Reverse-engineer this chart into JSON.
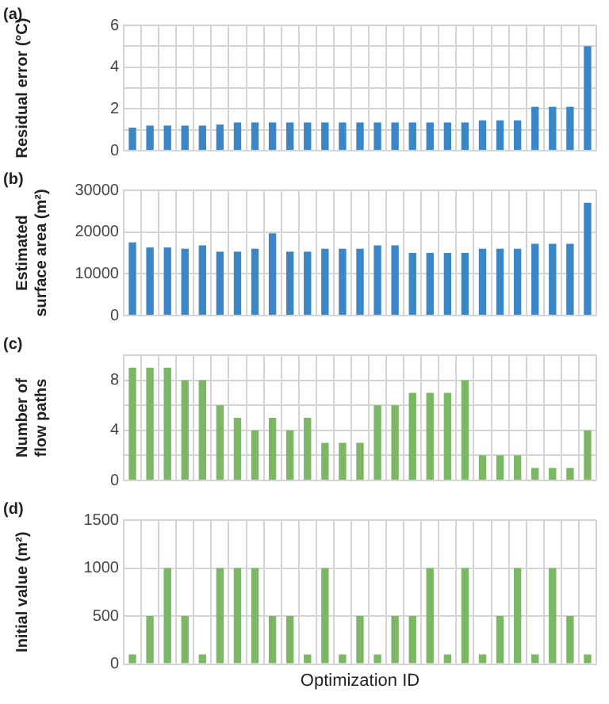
{
  "chart_data": [
    {
      "type": "bar",
      "title": "(a)",
      "ylabel": "Residual error (°C)",
      "categories": [
        null,
        null,
        null,
        null,
        null,
        null,
        null,
        null,
        null,
        null,
        null,
        null,
        null,
        null,
        null,
        null,
        null,
        null,
        null,
        null,
        null,
        null,
        null,
        null,
        null,
        null,
        null
      ],
      "values": [
        1.1,
        1.2,
        1.2,
        1.2,
        1.2,
        1.25,
        1.35,
        1.35,
        1.35,
        1.35,
        1.35,
        1.35,
        1.35,
        1.35,
        1.35,
        1.35,
        1.35,
        1.35,
        1.35,
        1.35,
        1.45,
        1.45,
        1.45,
        2.1,
        2.1,
        2.1,
        5
      ],
      "color": "#3a86c6",
      "ylim": [
        0,
        6
      ],
      "yticks": [
        0,
        {
          "value": 1,
          "label": null
        },
        2,
        {
          "value": 3,
          "label": null
        },
        4,
        {
          "value": 5,
          "label": null
        },
        6
      ],
      "grid": true,
      "tick_labels": "y"
    },
    {
      "type": "bar",
      "title": "(b)",
      "ylabel": "Estimated surface area (m²)",
      "categories": [
        null,
        null,
        null,
        null,
        null,
        null,
        null,
        null,
        null,
        null,
        null,
        null,
        null,
        null,
        null,
        null,
        null,
        null,
        null,
        null,
        null,
        null,
        null,
        null,
        null,
        null,
        null
      ],
      "values": [
        17500,
        16300,
        16300,
        16000,
        16800,
        15300,
        15300,
        16000,
        19700,
        15300,
        15300,
        16000,
        16000,
        16000,
        16800,
        16800,
        15000,
        15000,
        15000,
        15000,
        16000,
        16000,
        16000,
        17200,
        17200,
        17200,
        27000
      ],
      "color": "#3a86c6",
      "ylim": [
        0,
        30000
      ],
      "yticks": [
        0,
        10000,
        20000,
        30000
      ],
      "grid": true,
      "tick_labels": "y"
    },
    {
      "type": "bar",
      "title": "(c)",
      "ylabel": "Number of flow paths",
      "categories": [
        null,
        null,
        null,
        null,
        null,
        null,
        null,
        null,
        null,
        null,
        null,
        null,
        null,
        null,
        null,
        null,
        null,
        null,
        null,
        null,
        null,
        null,
        null,
        null,
        null,
        null,
        null
      ],
      "values": [
        9,
        9,
        9,
        8,
        8,
        6,
        5,
        4,
        5,
        4,
        5,
        3,
        3,
        3,
        6,
        6,
        7,
        7,
        7,
        8,
        2,
        2,
        2,
        1,
        1,
        1,
        4
      ],
      "color": "#7cb766",
      "ylim": [
        0,
        10
      ],
      "yticks": [
        0,
        {
          "value": 2,
          "label": null
        },
        4,
        {
          "value": 6,
          "label": null
        },
        8,
        {
          "value": 10,
          "label": null
        }
      ],
      "grid": true,
      "tick_labels": "y"
    },
    {
      "type": "bar",
      "title": "(d)",
      "ylabel": "Initial value (m²)",
      "xlabel": "Optimization ID",
      "categories": [
        null,
        null,
        null,
        null,
        null,
        null,
        null,
        null,
        null,
        null,
        null,
        null,
        null,
        null,
        null,
        null,
        null,
        null,
        null,
        null,
        null,
        null,
        null,
        null,
        null,
        null,
        null
      ],
      "values": [
        100,
        500,
        1000,
        500,
        100,
        1000,
        1000,
        1000,
        500,
        500,
        100,
        1000,
        100,
        500,
        100,
        500,
        500,
        1000,
        100,
        1000,
        100,
        500,
        1000,
        100,
        1000,
        500,
        100
      ],
      "color": "#7cb766",
      "ylim": [
        0,
        1500
      ],
      "yticks": [
        0,
        500,
        1000,
        1500
      ],
      "grid": true,
      "tick_labels": "y"
    }
  ]
}
